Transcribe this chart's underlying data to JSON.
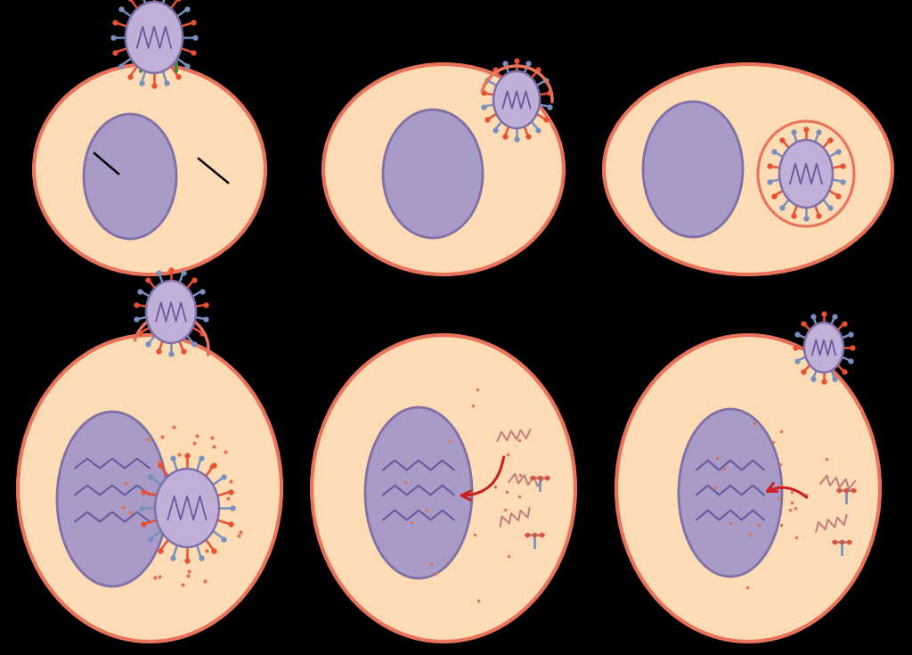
{
  "bg": "#000000",
  "cell_fill": "#FDDBB4",
  "cell_edge": "#E8725A",
  "nucleus_fill": "#A99BC8",
  "nucleus_edge": "#8070A8",
  "virus_fill": "#C0B0D8",
  "virus_edge": "#8070A8",
  "spike_red": "#E85030",
  "spike_blue": "#7890C0",
  "receptor_green": "#3A8A3A",
  "arrow_red": "#CC2020",
  "dot_orange": "#E07050",
  "mrna_pink": "#C08080",
  "protein_blue": "#7890C0",
  "zigzag_purple": "#6858A0",
  "black": "#000000"
}
